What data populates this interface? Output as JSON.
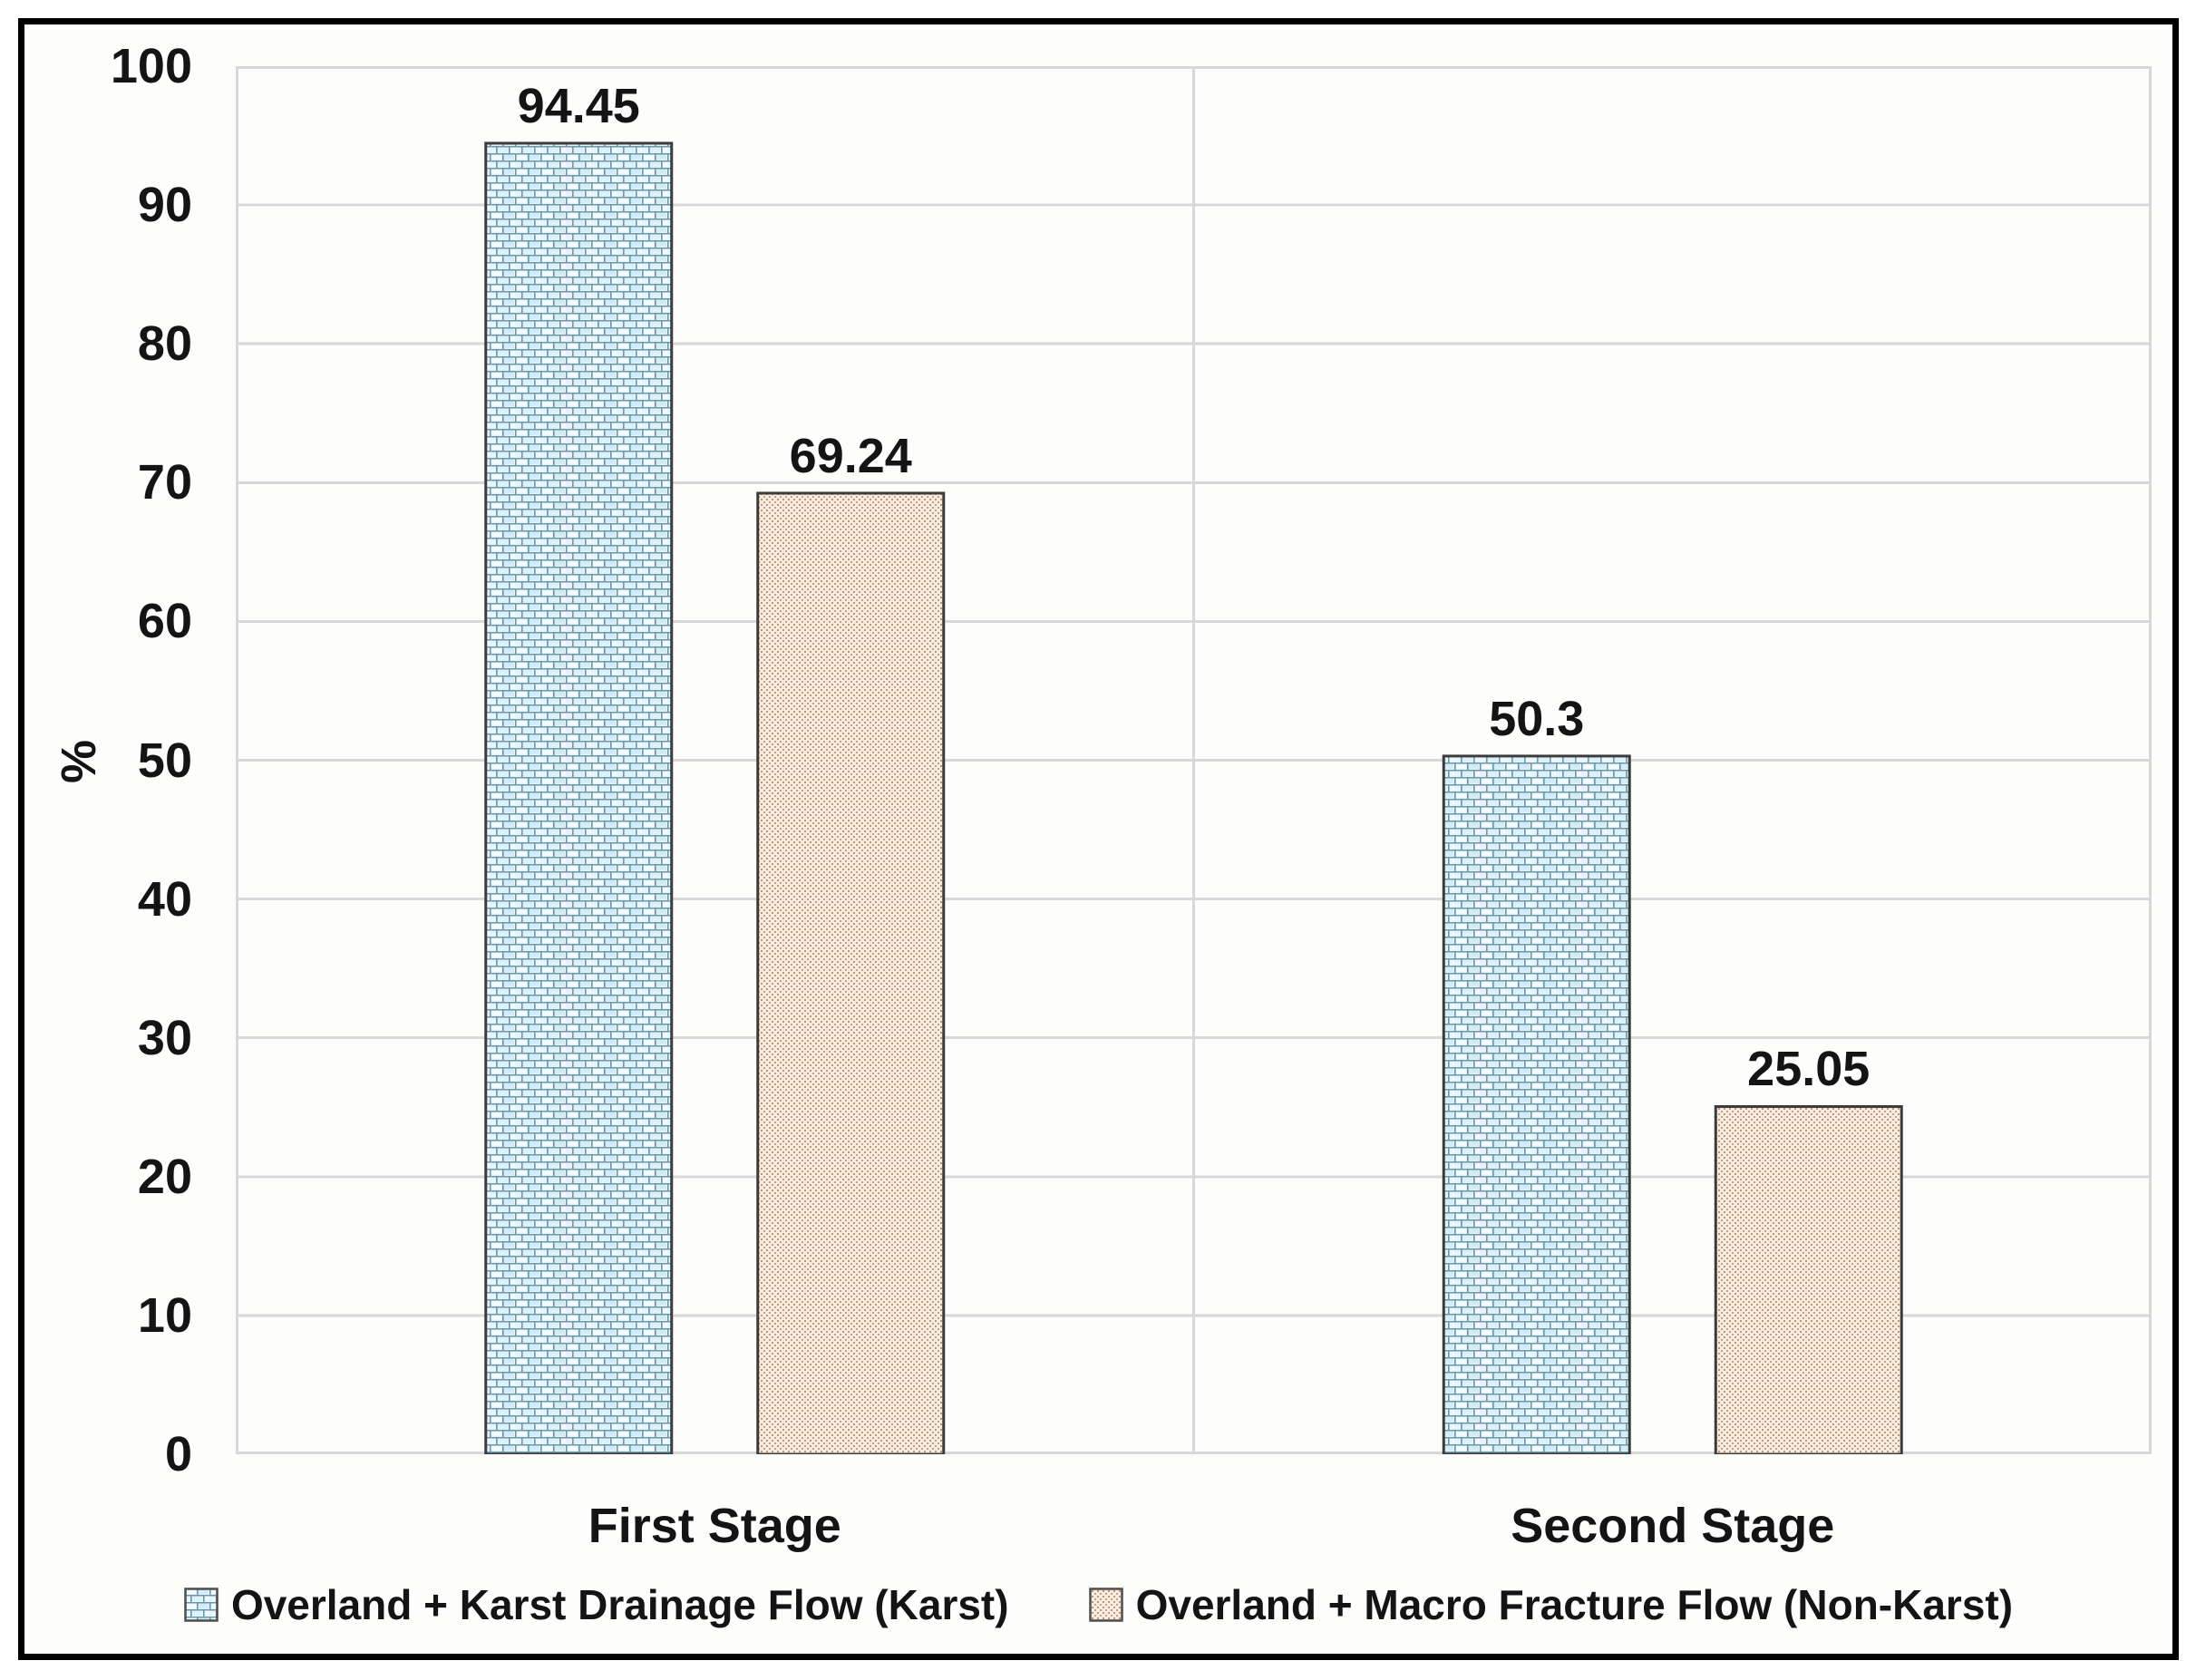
{
  "chart_data": {
    "type": "bar",
    "title": "",
    "xlabel": "",
    "ylabel": "%",
    "categories": [
      "First Stage",
      "Second Stage"
    ],
    "series": [
      {
        "name": "Overland + Karst Drainage Flow (Karst)",
        "values": [
          94.45,
          50.3
        ],
        "value_labels": [
          "94.45",
          "50.3"
        ],
        "pattern": "blue-brick"
      },
      {
        "name": "Overland + Macro Fracture Flow (Non-Karst)",
        "values": [
          69.24,
          25.05
        ],
        "value_labels": [
          "69.24",
          "25.05"
        ],
        "pattern": "tan-dots"
      }
    ],
    "ylim": [
      0,
      100
    ],
    "ytick_step": 10,
    "ytick_labels": [
      "0",
      "10",
      "20",
      "30",
      "40",
      "50",
      "60",
      "70",
      "80",
      "90",
      "100"
    ],
    "grid": "horizontal-light-gray, vertical category separator",
    "legend_position": "bottom-center",
    "colors": {
      "karst_brick_fill": "#e9f5fa",
      "karst_brick_tint": "#d5ebf5",
      "karst_brick_line": "#6898b0",
      "nonkarst_fill": "#f8ecdf",
      "nonkarst_dot": "#c5a086",
      "bar_border": "#3c3c3c",
      "gridline": "#d8d8d8",
      "text": "#141414",
      "figure_border": "#000000"
    }
  }
}
